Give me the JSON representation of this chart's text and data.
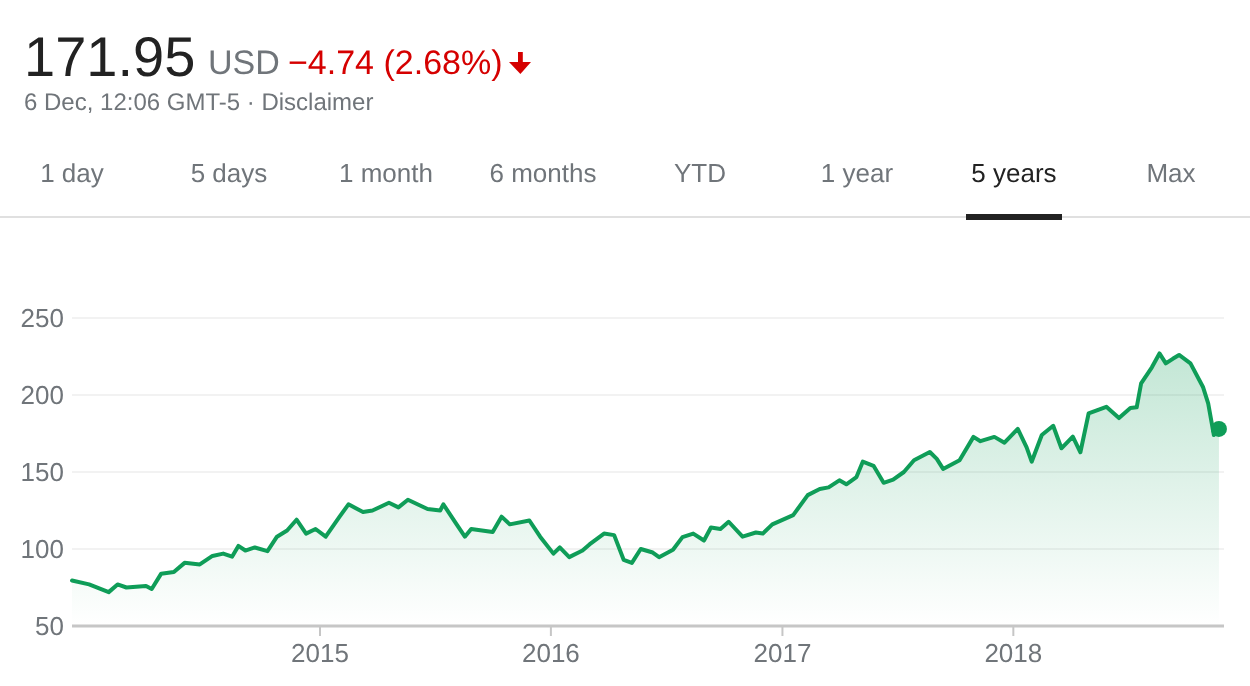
{
  "chart_data": {
    "type": "area",
    "title": "171.95",
    "subtitle": "6 Dec, 12:06 GMT-5 · Disclaimer",
    "annotations": [
      "USD",
      "−4.74 (2.68%)",
      "1 day",
      "5 days",
      "1 month",
      "6 months",
      "YTD",
      "1 year",
      "5 years",
      "Max"
    ],
    "x": [
      "2013-12-05",
      "2014-01-01",
      "2014-02-01",
      "2014-02-15",
      "2014-03-01",
      "2014-04-01",
      "2014-04-10",
      "2014-04-25",
      "2014-05-15",
      "2014-06-01",
      "2014-06-25",
      "2014-07-15",
      "2014-08-01",
      "2014-08-15",
      "2014-08-25",
      "2014-09-05",
      "2014-09-20",
      "2014-10-10",
      "2014-10-25",
      "2014-11-10",
      "2014-11-25",
      "2014-12-10",
      "2014-12-25",
      "2015-01-10",
      "2015-02-01",
      "2015-02-15",
      "2015-03-10",
      "2015-03-25",
      "2015-04-20",
      "2015-05-05",
      "2015-05-20",
      "2015-06-20",
      "2015-07-10",
      "2015-07-15",
      "2015-08-05",
      "2015-08-18",
      "2015-08-28",
      "2015-10-01",
      "2015-10-15",
      "2015-10-28",
      "2015-11-28",
      "2015-12-15",
      "2016-01-05",
      "2016-01-15",
      "2016-01-30",
      "2016-02-20",
      "2016-03-02",
      "2016-03-25",
      "2016-04-10",
      "2016-04-25",
      "2016-05-08",
      "2016-05-22",
      "2016-06-10",
      "2016-06-20",
      "2016-07-12",
      "2016-07-27",
      "2016-08-13",
      "2016-08-30",
      "2016-09-10",
      "2016-09-25",
      "2016-10-08",
      "2016-10-30",
      "2016-11-20",
      "2016-12-01",
      "2016-12-16",
      "2017-01-18",
      "2017-02-10",
      "2017-03-01",
      "2017-03-15",
      "2017-04-01",
      "2017-04-12",
      "2017-04-28",
      "2017-05-08",
      "2017-05-25",
      "2017-06-10",
      "2017-06-25",
      "2017-07-12",
      "2017-07-28",
      "2017-08-22",
      "2017-09-02",
      "2017-09-12",
      "2017-10-08",
      "2017-10-30",
      "2017-11-10",
      "2017-12-02",
      "2017-12-18",
      "2018-01-08",
      "2018-01-22",
      "2018-01-30",
      "2018-02-15",
      "2018-03-05",
      "2018-03-18",
      "2018-04-05",
      "2018-04-17",
      "2018-04-30",
      "2018-05-28",
      "2018-06-17",
      "2018-07-05",
      "2018-07-15",
      "2018-07-22",
      "2018-08-08",
      "2018-08-20",
      "2018-08-30",
      "2018-09-10",
      "2018-09-20",
      "2018-10-08",
      "2018-10-28",
      "2018-11-05",
      "2018-11-14",
      "2018-11-22"
    ],
    "series": [
      {
        "color": "#0f9d58",
        "values": [
          79.5,
          77,
          72,
          77,
          75,
          76,
          74,
          84,
          85,
          91,
          90,
          95.5,
          97,
          95,
          102,
          99,
          101,
          98.6,
          108,
          112,
          119,
          110,
          113,
          108,
          121,
          129,
          124,
          125,
          130,
          127,
          132,
          126,
          125,
          129,
          116,
          108,
          113,
          111,
          121,
          116,
          118.5,
          108,
          97,
          101,
          94.7,
          99,
          103,
          110,
          109,
          93,
          91,
          100,
          97.7,
          94.7,
          99.5,
          107.7,
          110,
          105.5,
          114,
          113,
          117.7,
          108,
          110.7,
          110,
          116,
          122,
          135,
          139,
          140,
          144.6,
          142,
          146.7,
          156.7,
          154,
          143,
          145,
          150,
          157.6,
          163,
          158.5,
          152,
          157.6,
          172.8,
          170,
          172.8,
          169,
          178,
          166,
          156.7,
          174,
          180,
          165.4,
          173,
          162.8,
          188,
          192.3,
          185,
          191.5,
          192,
          207.5,
          218,
          227,
          220.5,
          223.5,
          226,
          220.5,
          205,
          194.5,
          174,
          178
        ]
      }
    ],
    "xlim": [
      "2013-12-05",
      "2018-11-30"
    ],
    "xticks": [
      {
        "value": "2015",
        "label": "2015"
      },
      {
        "value": "2016",
        "label": "2016"
      },
      {
        "value": "2017",
        "label": "2017"
      },
      {
        "value": "2018",
        "label": "2018"
      }
    ],
    "ylim": [
      50,
      250
    ],
    "yticks": [
      50,
      100,
      150,
      200,
      250
    ],
    "grid": "y",
    "marker": "none",
    "line_style": "solid"
  }
}
